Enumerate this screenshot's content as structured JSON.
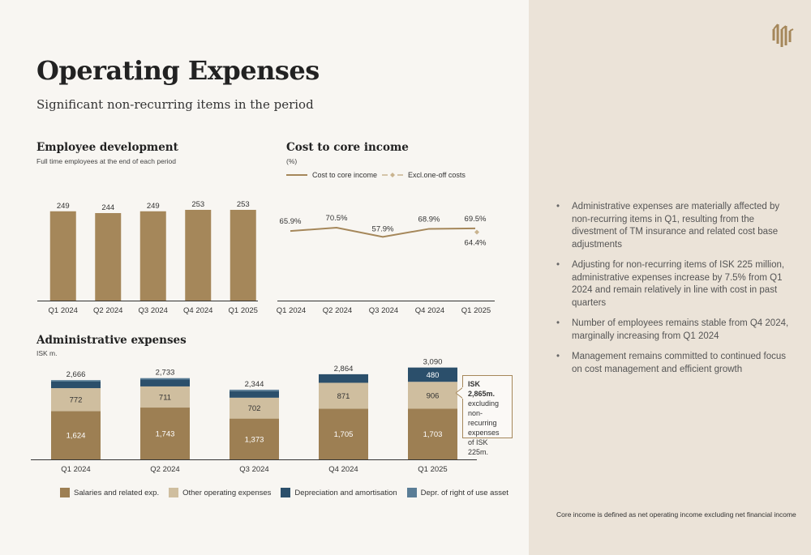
{
  "page": {
    "title": "Operating Expenses",
    "subtitle": "Significant non-recurring items in the period"
  },
  "colors": {
    "bar": "#a5875a",
    "salaries": "#9d7f53",
    "other": "#cfbe9f",
    "depr": "#2b4f6b",
    "rou": "#5a7d96",
    "panel": "#ebe3d8"
  },
  "employee": {
    "title": "Employee development",
    "subtitle": "Full time employees at the end of each period"
  },
  "cost": {
    "title": "Cost to core income",
    "subtitle": "(%)",
    "legend_line": "Cost to core income",
    "legend_excl": "Excl.one-off costs"
  },
  "admin": {
    "title": "Administrative expenses",
    "subtitle": "ISK m.",
    "legend": [
      "Salaries and related exp.",
      "Other operating expenses",
      "Depreciation and amortisation",
      "Depr. of right of use asset"
    ],
    "callout_bold": "ISK 2,865m.",
    "callout_text": "excluding non-recurring expenses of ISK 225m."
  },
  "bullets": [
    "Administrative expenses are materially affected by non-recurring items in Q1, resulting from the divestment of TM insurance and related cost base adjustments",
    "Adjusting for non-recurring items of ISK 225 million, administrative expenses increase by 7.5% from Q1 2024 and remain relatively in line with cost in past quarters",
    "Number of employees remains stable from Q4 2024, marginally increasing from Q1 2024",
    "Management remains committed to continued focus on cost management and efficient growth"
  ],
  "footnote": "Core income is defined as net operating income excluding net financial income",
  "chart_data": [
    {
      "type": "bar",
      "title": "Employee development",
      "subtitle": "Full time employees at the end of each period",
      "categories": [
        "Q1 2024",
        "Q2 2024",
        "Q3 2024",
        "Q4 2024",
        "Q1 2025"
      ],
      "values": [
        249,
        244,
        249,
        253,
        253
      ],
      "ylim": [
        0,
        253
      ]
    },
    {
      "type": "line",
      "title": "Cost to core income",
      "ylabel": "(%)",
      "categories": [
        "Q1 2024",
        "Q2 2024",
        "Q3 2024",
        "Q4 2024",
        "Q1 2025"
      ],
      "series": [
        {
          "name": "Cost to core income",
          "values": [
            65.9,
            70.5,
            57.9,
            68.9,
            69.5
          ],
          "labels": [
            "65.9%",
            "70.5%",
            "57.9%",
            "68.9%",
            "69.5%"
          ]
        },
        {
          "name": "Excl.one-off costs",
          "values": [
            null,
            null,
            null,
            null,
            64.4
          ],
          "labels": [
            "",
            "",
            "",
            "",
            "64.4%"
          ]
        }
      ],
      "legend": "top-left"
    },
    {
      "type": "bar",
      "stacked": true,
      "title": "Administrative expenses",
      "ylabel": "ISK m.",
      "categories": [
        "Q1 2024",
        "Q2 2024",
        "Q3 2024",
        "Q4 2024",
        "Q1 2025"
      ],
      "totals": [
        2666,
        2733,
        2344,
        2864,
        3090
      ],
      "total_labels": [
        "2,666",
        "2,733",
        "2,344",
        "2,864",
        "3,090"
      ],
      "series": [
        {
          "name": "Salaries and related exp.",
          "values": [
            1624,
            1743,
            1373,
            1705,
            1703
          ],
          "labels": [
            "1,624",
            "1,743",
            "1,373",
            "1,705",
            "1,703"
          ]
        },
        {
          "name": "Other operating expenses",
          "values": [
            772,
            711,
            702,
            871,
            906
          ],
          "labels": [
            "772",
            "711",
            "702",
            "871",
            "906"
          ]
        },
        {
          "name": "Depreciation and amortisation",
          "values": [
            220,
            229,
            220,
            288,
            480
          ],
          "labels": [
            "",
            "",
            "",
            "",
            "480"
          ]
        },
        {
          "name": "Depr. of right of use asset",
          "values": [
            50,
            50,
            49,
            0,
            0
          ],
          "labels": [
            "",
            "",
            "",
            "",
            ""
          ]
        }
      ],
      "legend": "bottom"
    }
  ]
}
